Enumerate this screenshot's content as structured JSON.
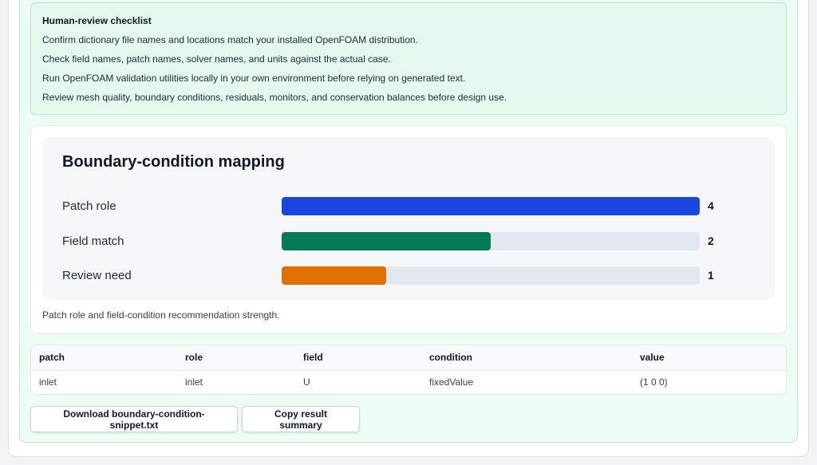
{
  "checklist": {
    "title": "Human-review checklist",
    "items": [
      "Confirm dictionary file names and locations match your installed OpenFOAM distribution.",
      "Check field names, patch names, solver names, and units against the actual case.",
      "Run OpenFOAM validation utilities locally in your own environment before relying on generated text.",
      "Review mesh quality, boundary conditions, residuals, monitors, and conservation balances before design use."
    ]
  },
  "chart_data": {
    "type": "bar",
    "orientation": "horizontal",
    "title": "Boundary-condition mapping",
    "categories": [
      "Patch role",
      "Field match",
      "Review need"
    ],
    "values": [
      4,
      2,
      1
    ],
    "xlim": [
      0,
      4
    ],
    "colors": [
      "#1a46e0",
      "#047857",
      "#e07000"
    ],
    "grid": false,
    "caption": "Patch role and field-condition recommendation strength."
  },
  "table": {
    "headers": [
      "patch",
      "role",
      "field",
      "condition",
      "value"
    ],
    "rows": [
      [
        "inlet",
        "inlet",
        "U",
        "fixedValue",
        "(1 0 0)"
      ]
    ]
  },
  "actions": {
    "download_label": "Download boundary-condition-snippet.txt",
    "copy_label": "Copy result summary"
  }
}
